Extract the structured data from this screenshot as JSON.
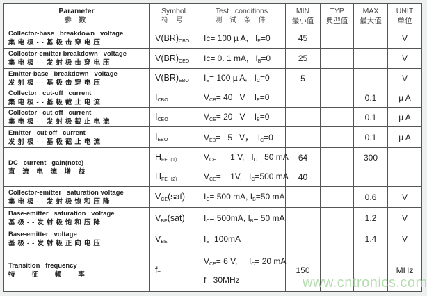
{
  "header": {
    "parameter": "Parameter",
    "parameter_cn": "参 数",
    "symbol": "Symbol",
    "symbol_cn": "符 号",
    "test": "Test   conditions",
    "test_cn": "测 试 条 件",
    "min": "MIN",
    "min_cn": "最小值",
    "typ": "TYP",
    "typ_cn": "典型值",
    "max": "MAX",
    "max_cn": "最大值",
    "unit": "UNIT",
    "unit_cn": "单位"
  },
  "rows": [
    {
      "en": "Collector-base   breakdown   voltage",
      "cn": "集电极--基极击穿电压",
      "sym": [
        [
          "V(BR)",
          "CBO"
        ]
      ],
      "cond": [
        [
          [
            "Ic= 100 µ A,   I",
            "E"
          ],
          [
            "=0",
            ""
          ]
        ]
      ],
      "min": "45",
      "typ": "",
      "max": "",
      "unit": "V"
    },
    {
      "en": "Collector-emitter breakdown   voltage",
      "cn": "集电极--发射极击穿电压",
      "sym": [
        [
          "V(BR)",
          "CEO"
        ]
      ],
      "cond": [
        [
          [
            "Ic= 0. 1 mA,   I",
            "B"
          ],
          [
            "=0",
            ""
          ]
        ]
      ],
      "min": "25",
      "typ": "",
      "max": "",
      "unit": "V"
    },
    {
      "en": "Emitter-base   breakdown   voltage",
      "cn": "发射极--基极击穿电压",
      "sym": [
        [
          "V(BR)",
          "EBO"
        ]
      ],
      "cond": [
        [
          [
            "I",
            "E"
          ],
          [
            "= 100 µ A,   I",
            "C"
          ],
          [
            "=0",
            ""
          ]
        ]
      ],
      "min": "5",
      "typ": "",
      "max": "",
      "unit": "V"
    },
    {
      "en": "Collector   cut-off   current",
      "cn": "集电极--基极截止电流",
      "sym": [
        [
          "I",
          "CBO"
        ]
      ],
      "cond": [
        [
          [
            "V",
            "CB"
          ],
          [
            "= 40   V    I",
            "E"
          ],
          [
            "=0",
            ""
          ]
        ]
      ],
      "min": "",
      "typ": "",
      "max": "0.1",
      "unit": "µ A"
    },
    {
      "en": "Collector   cut-off   current",
      "cn": "集电极--发射极截止电流",
      "sym": [
        [
          "I",
          "CEO"
        ]
      ],
      "cond": [
        [
          [
            "V",
            "CE"
          ],
          [
            "= 20   V    I",
            "B"
          ],
          [
            "=0",
            ""
          ]
        ]
      ],
      "min": "",
      "typ": "",
      "max": "0.1",
      "unit": "µ A"
    },
    {
      "en": "Emitter   cut-off   current",
      "cn": "发射极--基极截止电流",
      "sym": [
        [
          "I",
          "EBO"
        ]
      ],
      "cond": [
        [
          [
            "V",
            "EB"
          ],
          [
            "=   5   V，  I",
            "C"
          ],
          [
            "=0",
            ""
          ]
        ]
      ],
      "min": "",
      "typ": "",
      "max": "0.1",
      "unit": "µ A"
    }
  ],
  "hfe": {
    "en": "DC   current   gain(note)",
    "cn": "直 流 电 流 增 益",
    "sub": [
      {
        "sym": [
          [
            "H",
            "FE（1）"
          ]
        ],
        "cond": [
          [
            [
              "V",
              "CE"
            ],
            [
              "=    1 V,   I",
              "C"
            ],
            [
              "= 50 mA",
              ""
            ]
          ]
        ],
        "min": "64",
        "typ": "",
        "max": "300",
        "unit": ""
      },
      {
        "sym": [
          [
            "H",
            "FE（2）"
          ]
        ],
        "cond": [
          [
            [
              "V",
              "CE"
            ],
            [
              "=    1V,   I",
              "C"
            ],
            [
              "=500 mA",
              ""
            ]
          ]
        ],
        "min": "40",
        "typ": "",
        "max": "",
        "unit": ""
      }
    ]
  },
  "rows2": [
    {
      "en": "Collector-emitter   saturation voltage",
      "cn": "集电极--发射极饱和压降",
      "sym": [
        [
          "V",
          "CE"
        ],
        [
          "(sat)",
          ""
        ]
      ],
      "cond": [
        [
          [
            "I",
            "C"
          ],
          [
            "= 500 mA, I",
            "B"
          ],
          [
            "=50 mA",
            ""
          ]
        ]
      ],
      "min": "",
      "typ": "",
      "max": "0.6",
      "unit": "V"
    },
    {
      "en": "Base-emitter   saturation   voltage",
      "cn": "基极--发射极饱和压降",
      "sym": [
        [
          "V",
          "BE"
        ],
        [
          "(sat)",
          ""
        ]
      ],
      "cond": [
        [
          [
            "I",
            "C"
          ],
          [
            "= 500mA, I",
            "B"
          ],
          [
            "= 50 mA",
            ""
          ]
        ]
      ],
      "min": "",
      "typ": "",
      "max": "1.2",
      "unit": "V"
    },
    {
      "en": "Base-emitter   voltage",
      "cn": "基极--发射极正向电压",
      "sym": [
        [
          "V",
          "BE"
        ]
      ],
      "cond": [
        [
          [
            "I",
            "E"
          ],
          [
            "=100mA",
            ""
          ]
        ]
      ],
      "min": "",
      "typ": "",
      "max": "1.4",
      "unit": "V"
    },
    {
      "en": "Transition   frequency",
      "cn": "特   征   频   率",
      "sym": [
        [
          "f",
          "T"
        ]
      ],
      "cond": [
        [
          [
            "V",
            "CE"
          ],
          [
            "= 6 V,     I",
            "C"
          ],
          [
            "= 20 mA",
            ""
          ]
        ],
        [
          [
            "f =30MHz",
            ""
          ]
        ]
      ],
      "min": "150",
      "typ": "",
      "max": "",
      "unit": "MHz"
    }
  ],
  "watermark": "www.cntronics.com"
}
